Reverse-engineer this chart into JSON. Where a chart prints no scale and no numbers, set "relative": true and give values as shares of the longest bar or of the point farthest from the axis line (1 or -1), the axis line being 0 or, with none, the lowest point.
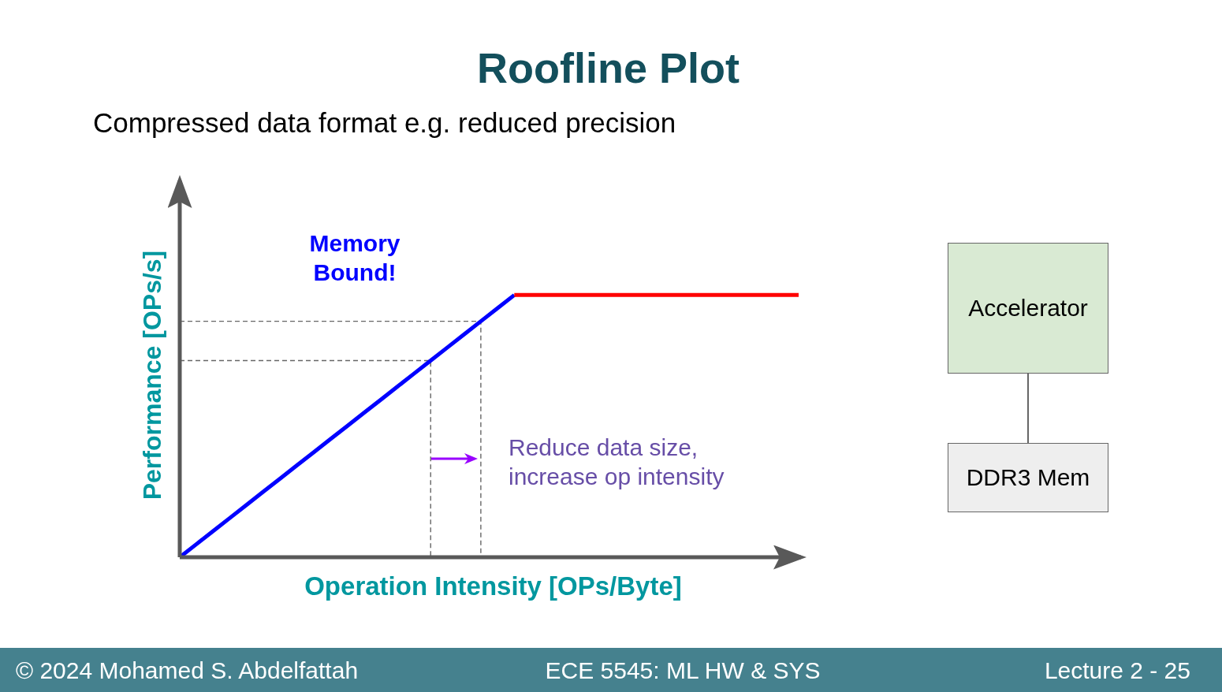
{
  "chart_data": [
    {
      "type": "line",
      "title": "Roofline Plot",
      "subtitle": "Compressed data format e.g. reduced precision",
      "xlabel": "Operation Intensity [OPs/Byte]",
      "ylabel": "Performance [OPs/s]",
      "relative": true,
      "categories": [
        null,
        null,
        null,
        null,
        null,
        null,
        null,
        null,
        null,
        null,
        null,
        null,
        null,
        null,
        null,
        null,
        null,
        null,
        null,
        null,
        null,
        null,
        null,
        null,
        null,
        null,
        null,
        null,
        null,
        null,
        null,
        null,
        null,
        null,
        null,
        null,
        null,
        null
      ],
      "series": [
        {
          "type": "step",
          "color": "#666666",
          "line_style": "dashed",
          "values": [
            0.75,
            0.75,
            0.75,
            0.75,
            0.75,
            0.75,
            0.75,
            0.75,
            0.75,
            0.75,
            0.75,
            0.75,
            0.75,
            0.75,
            0.75,
            0,
            null,
            null,
            null,
            null,
            null,
            null,
            null,
            null,
            null,
            null,
            null,
            null,
            null,
            null,
            null,
            null,
            null,
            null,
            null,
            null,
            null,
            null
          ]
        },
        {
          "type": "step",
          "color": "#666666",
          "line_style": "dashed",
          "values": [
            0.9,
            0.9,
            0.9,
            0.9,
            0.9,
            0.9,
            0.9,
            0.9,
            0.9,
            0.9,
            0.9,
            0.9,
            0.9,
            0.9,
            0.9,
            0.9,
            0.9,
            0.9,
            0,
            null,
            null,
            null,
            null,
            null,
            null,
            null,
            null,
            null,
            null,
            null,
            null,
            null,
            null,
            null,
            null,
            null,
            null,
            null
          ]
        },
        {
          "color": "#0000ff",
          "values": [
            0,
            0.05,
            0.1,
            0.15,
            0.2,
            0.25,
            0.3,
            0.35,
            0.4,
            0.45,
            0.5,
            0.55,
            0.6,
            0.65,
            0.7,
            0.75,
            0.8,
            0.85,
            0.9,
            0.95,
            1,
            null,
            null,
            null,
            null,
            null,
            null,
            null,
            null,
            null,
            null,
            null,
            null,
            null,
            null,
            null,
            null,
            null
          ]
        },
        {
          "color": "#ff0000",
          "values": [
            null,
            null,
            null,
            null,
            null,
            null,
            null,
            null,
            null,
            null,
            null,
            null,
            null,
            null,
            null,
            null,
            null,
            null,
            null,
            null,
            1,
            1,
            1,
            1,
            1,
            1,
            1,
            1,
            1,
            1,
            1,
            1,
            1,
            1,
            1,
            1,
            1,
            1
          ]
        }
      ],
      "annotations": [
        "Memory Bound!",
        "Reduce data size, increase op intensity",
        "© 2024 Mohamed S. Abdelfattah",
        "ECE 5545: ML HW & SYS",
        "Lecture 2 - 25"
      ]
    },
    {
      "type": "other",
      "annotations": [
        "Accelerator",
        "DDR3 Mem"
      ]
    }
  ]
}
